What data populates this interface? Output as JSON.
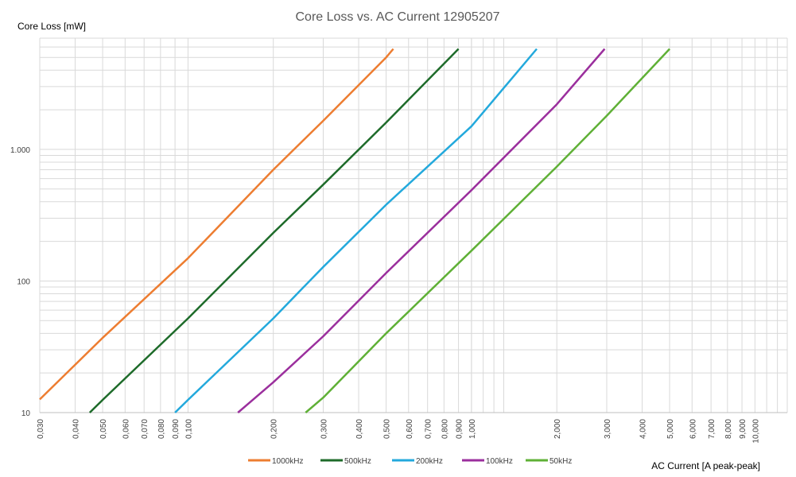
{
  "chart_data": {
    "type": "line",
    "title": "Core Loss vs. AC Current 12905207",
    "ylabel": "Core Loss [mW]",
    "xlabel": "AC Current [A peak-peak]",
    "x_scale": "log",
    "y_scale": "log",
    "xlim": [
      0.03,
      13
    ],
    "ylim": [
      10,
      7000
    ],
    "grid": true,
    "legend_position": "bottom",
    "x_ticks": [
      {
        "value": 0.03,
        "label": "0,030"
      },
      {
        "value": 0.04,
        "label": "0,040"
      },
      {
        "value": 0.05,
        "label": "0,050"
      },
      {
        "value": 0.06,
        "label": "0,060"
      },
      {
        "value": 0.07,
        "label": "0,070"
      },
      {
        "value": 0.08,
        "label": "0,080"
      },
      {
        "value": 0.09,
        "label": "0,090"
      },
      {
        "value": 0.1,
        "label": "0,100"
      },
      {
        "value": 0.2,
        "label": "0,200"
      },
      {
        "value": 0.3,
        "label": "0,300"
      },
      {
        "value": 0.4,
        "label": "0,400"
      },
      {
        "value": 0.5,
        "label": "0,500"
      },
      {
        "value": 0.6,
        "label": "0,600"
      },
      {
        "value": 0.7,
        "label": "0,700"
      },
      {
        "value": 0.8,
        "label": "0,800"
      },
      {
        "value": 0.9,
        "label": "0,900"
      },
      {
        "value": 1,
        "label": "1,000"
      },
      {
        "value": 2,
        "label": "2,000"
      },
      {
        "value": 3,
        "label": "3,000"
      },
      {
        "value": 4,
        "label": "4,000"
      },
      {
        "value": 5,
        "label": "5,000"
      },
      {
        "value": 6,
        "label": "6,000"
      },
      {
        "value": 7,
        "label": "7,000"
      },
      {
        "value": 8,
        "label": "8,000"
      },
      {
        "value": 9,
        "label": "9,000"
      },
      {
        "value": 10,
        "label": "10,000"
      }
    ],
    "y_ticks": [
      {
        "value": 10,
        "label": "10"
      },
      {
        "value": 100,
        "label": "100"
      },
      {
        "value": 1000,
        "label": "1.000"
      }
    ],
    "series": [
      {
        "name": "1000kHz",
        "color": "#ED7D31",
        "x": [
          0.03,
          0.05,
          0.1,
          0.2,
          0.3,
          0.5,
          0.53
        ],
        "y": [
          12.6,
          37,
          149,
          700,
          1650,
          5000,
          5800
        ]
      },
      {
        "name": "500kHz",
        "color": "#1E6B2A",
        "x": [
          0.045,
          0.05,
          0.1,
          0.2,
          0.3,
          0.5,
          0.9
        ],
        "y": [
          10,
          12.5,
          52,
          232,
          540,
          1600,
          5800
        ]
      },
      {
        "name": "200kHz",
        "color": "#23A9DC",
        "x": [
          0.09,
          0.1,
          0.2,
          0.3,
          0.5,
          1,
          1.7
        ],
        "y": [
          10,
          12.5,
          52,
          128,
          380,
          1500,
          5800
        ]
      },
      {
        "name": "100kHz",
        "color": "#9B2F9D",
        "x": [
          0.15,
          0.2,
          0.3,
          0.5,
          1,
          2,
          2.95
        ],
        "y": [
          10,
          17,
          38,
          115,
          490,
          2200,
          5800
        ]
      },
      {
        "name": "50kHz",
        "color": "#5FB036",
        "x": [
          0.26,
          0.3,
          0.5,
          1,
          2,
          3,
          5
        ],
        "y": [
          10,
          13,
          40,
          170,
          740,
          1800,
          5800
        ]
      }
    ]
  }
}
